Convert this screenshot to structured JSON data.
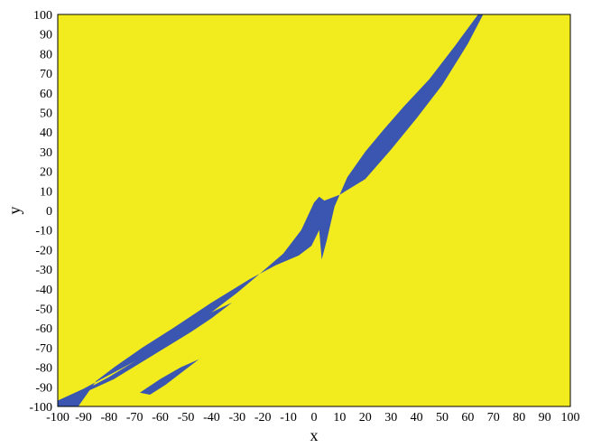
{
  "chart_data": {
    "type": "heatmap",
    "title": "",
    "xlabel": "x",
    "ylabel": "y",
    "xlim": [
      -100,
      100
    ],
    "ylim": [
      -100,
      100
    ],
    "x_ticks": [
      "-100",
      "-90",
      "-80",
      "-70",
      "-60",
      "-50",
      "-40",
      "-30",
      "-20",
      "-10",
      "0",
      "10",
      "20",
      "30",
      "40",
      "50",
      "60",
      "70",
      "80",
      "90",
      "100"
    ],
    "y_ticks": [
      "100",
      "90",
      "80",
      "70",
      "60",
      "50",
      "40",
      "30",
      "20",
      "10",
      "0",
      "-10",
      "-20",
      "-30",
      "-40",
      "-50",
      "-60",
      "-70",
      "-80",
      "-90",
      "-100"
    ],
    "grid": false,
    "legend": "none",
    "colors": {
      "background_region": "#f2ec1e",
      "basin_region": "#3a56b0"
    },
    "regions": [
      {
        "name": "basin",
        "polygon": [
          [
            -100,
            -97
          ],
          [
            -90,
            -91
          ],
          [
            -80,
            -84
          ],
          [
            -70,
            -77
          ],
          [
            -60,
            -70
          ],
          [
            -50,
            -61
          ],
          [
            -40,
            -52
          ],
          [
            -30,
            -42
          ],
          [
            -20,
            -31
          ],
          [
            -12,
            -22
          ],
          [
            -5,
            -10
          ],
          [
            0,
            4
          ],
          [
            2,
            7
          ],
          [
            4,
            5
          ],
          [
            10,
            8
          ],
          [
            20,
            16
          ],
          [
            30,
            31
          ],
          [
            40,
            47
          ],
          [
            50,
            64
          ],
          [
            60,
            85
          ],
          [
            66,
            100
          ],
          [
            64,
            100
          ],
          [
            55,
            84
          ],
          [
            45,
            67
          ],
          [
            35,
            53
          ],
          [
            27,
            41
          ],
          [
            20,
            30
          ],
          [
            13,
            17
          ],
          [
            8,
            2
          ],
          [
            5,
            -15
          ],
          [
            3,
            -25
          ],
          [
            2,
            -10
          ],
          [
            -1,
            -18
          ],
          [
            -6,
            -23
          ],
          [
            -15,
            -28
          ],
          [
            -25,
            -35
          ],
          [
            -40,
            -47
          ],
          [
            -55,
            -60
          ],
          [
            -67,
            -70
          ],
          [
            -78,
            -80
          ],
          [
            -85,
            -87
          ],
          [
            -92,
            -100
          ],
          [
            -100,
            -100
          ]
        ]
      },
      {
        "name": "basin-lower-band",
        "polygon": [
          [
            -97,
            -99
          ],
          [
            -88,
            -92
          ],
          [
            -78,
            -86
          ],
          [
            -68,
            -78
          ],
          [
            -58,
            -70
          ],
          [
            -48,
            -62
          ],
          [
            -40,
            -55
          ],
          [
            -32,
            -47
          ],
          [
            -40,
            -52
          ],
          [
            -50,
            -60
          ],
          [
            -60,
            -68
          ],
          [
            -70,
            -77
          ],
          [
            -80,
            -85
          ],
          [
            -90,
            -92
          ],
          [
            -95,
            -97
          ]
        ]
      },
      {
        "name": "basin-speckle",
        "polygon": [
          [
            -68,
            -93
          ],
          [
            -60,
            -86
          ],
          [
            -52,
            -80
          ],
          [
            -45,
            -76
          ],
          [
            -43,
            -74
          ],
          [
            -50,
            -81
          ],
          [
            -58,
            -89
          ],
          [
            -64,
            -94
          ]
        ]
      }
    ]
  }
}
